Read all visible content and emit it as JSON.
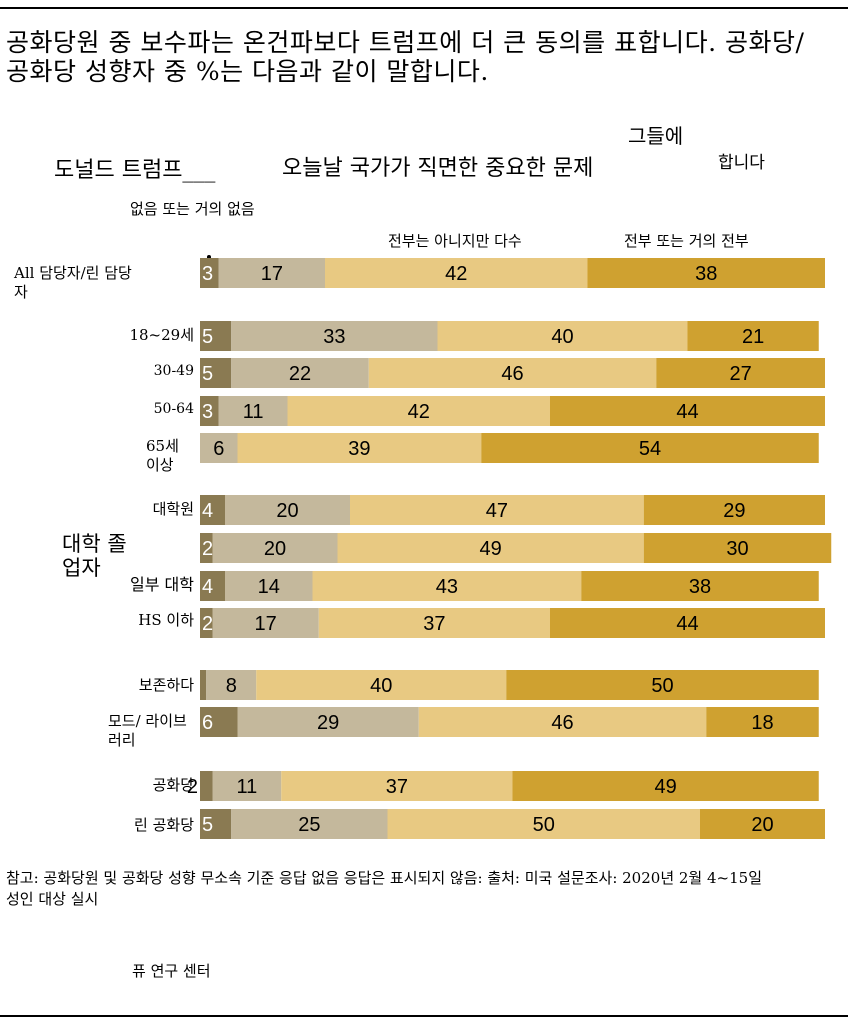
{
  "title": "공화당원 중 보수파는 온건파보다 트럼프에 더 큰 동의를 표합니다. 공화당/공화당 성향자 중 %는 다음과 같이 말합니다.",
  "header": {
    "subject": "도널드 트럼프___",
    "question": "오늘날 국가가 직면한 중요한 문제",
    "agree_word_top": "그들에",
    "agree_word_bottom": "합니다",
    "col_none": "없음 또는 거의 없음",
    "col_notall": "전부는 아니지만 다수",
    "col_all": "전부 또는 거의 전부"
  },
  "group_label_education": "대학 졸업자",
  "colors": {
    "none": "#8a7a52",
    "few": "#c4b89c",
    "most": "#e8c982",
    "all": "#cfa130"
  },
  "chart_data": {
    "type": "bar",
    "stacked": true,
    "orientation": "horizontal",
    "series_order": [
      "없음 또는 거의 없음",
      "",
      "전부는 아니지만 다수",
      "전부 또는 거의 전부"
    ],
    "rows": [
      {
        "label": "All 담당자/린 담당자",
        "values": [
          3,
          17,
          42,
          38
        ]
      },
      {
        "label": "18~29세",
        "values": [
          5,
          33,
          40,
          21
        ]
      },
      {
        "label": "30-49",
        "values": [
          5,
          22,
          46,
          27
        ]
      },
      {
        "label": "50-64",
        "values": [
          3,
          11,
          42,
          44
        ]
      },
      {
        "label": "65세 이상",
        "values": [
          null,
          6,
          39,
          54
        ]
      },
      {
        "label": "대학원",
        "values": [
          4,
          20,
          47,
          29
        ]
      },
      {
        "label": "",
        "values": [
          2,
          20,
          49,
          30
        ]
      },
      {
        "label": "일부 대학",
        "values": [
          4,
          14,
          43,
          38
        ]
      },
      {
        "label": "HS 이하",
        "values": [
          2,
          17,
          37,
          44
        ]
      },
      {
        "label": "보존하다",
        "values": [
          1,
          8,
          40,
          50
        ]
      },
      {
        "label": "모드/ 라이브러리",
        "values": [
          6,
          29,
          46,
          18
        ]
      },
      {
        "label": "공화당",
        "values": [
          2,
          11,
          37,
          49
        ]
      },
      {
        "label": "린 공화당",
        "values": [
          5,
          25,
          50,
          20
        ]
      }
    ]
  },
  "note": "참고: 공화당원 및 공화당 성향 무소속 기준 응답 없음 응답은 표시되지 않음: 출처: 미국 설문조사: 2020년 2월 4~15일 성인 대상 실시",
  "source": "퓨 연구 센터"
}
